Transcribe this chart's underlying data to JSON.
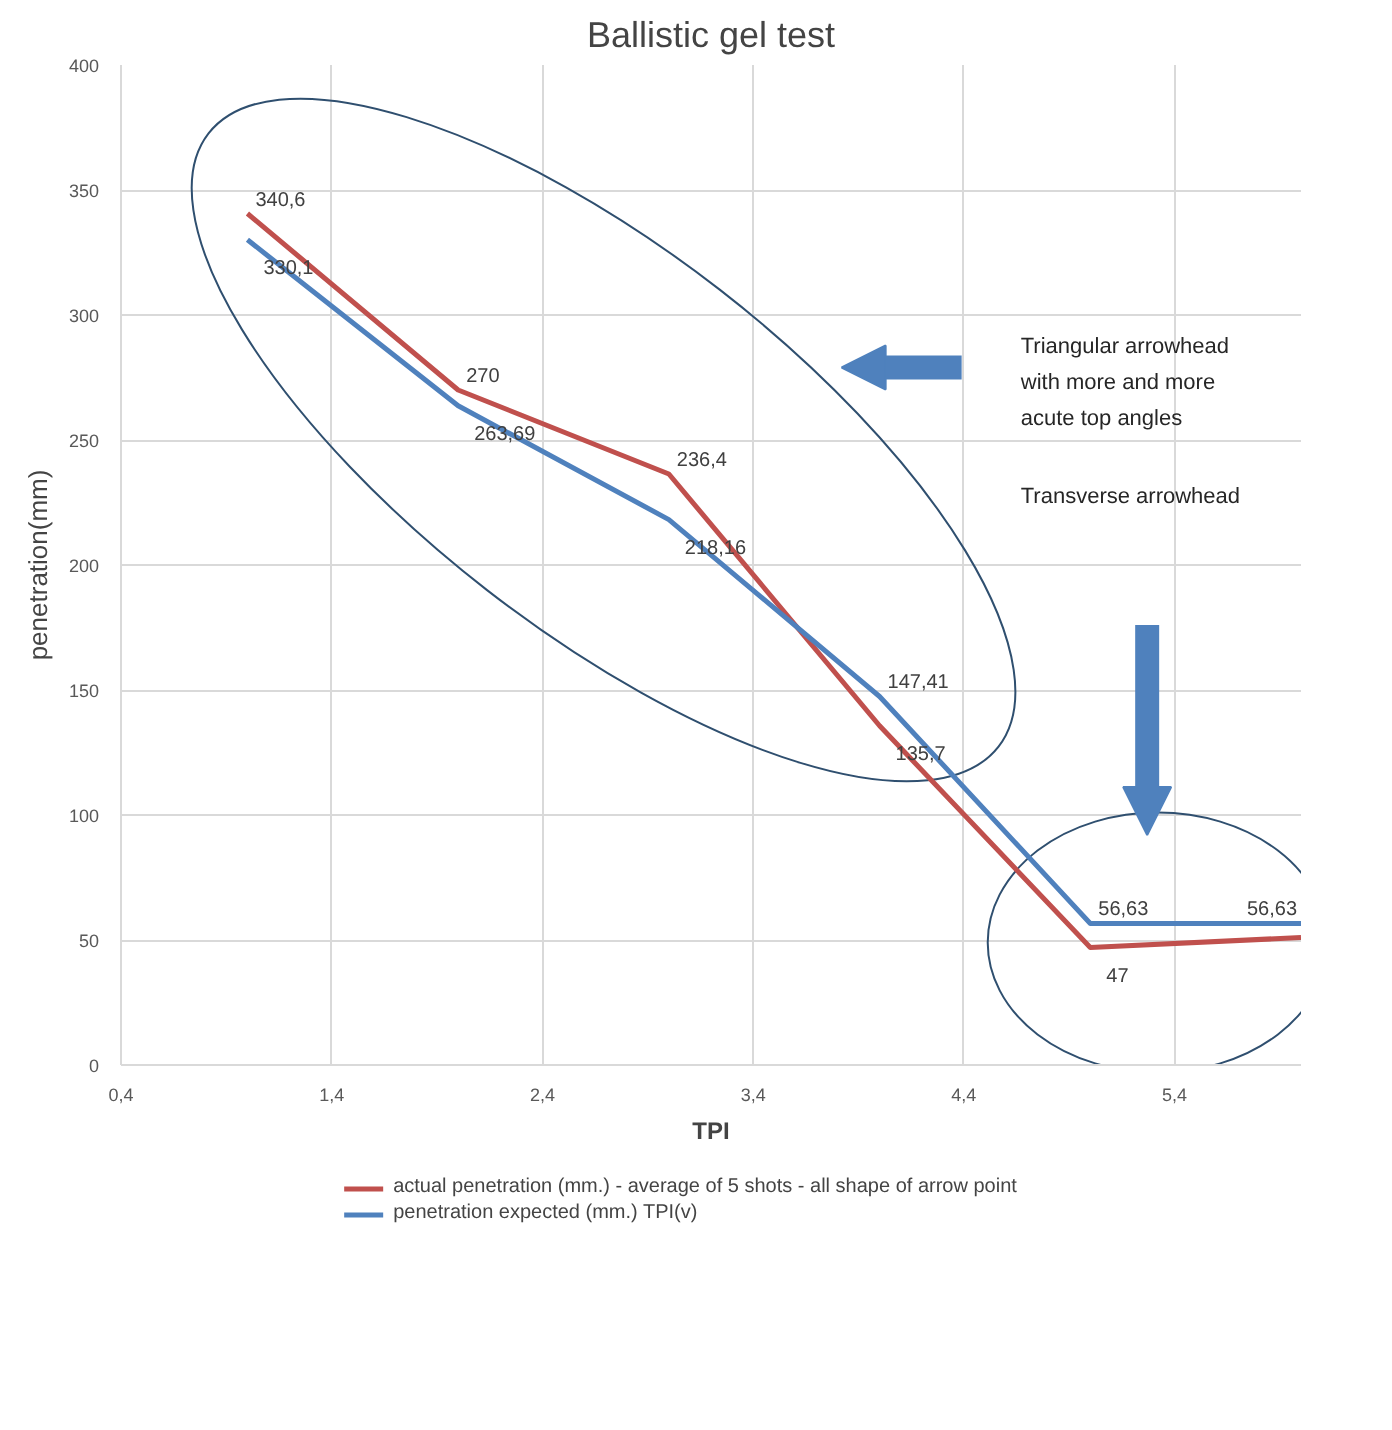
{
  "chart_data": {
    "type": "line",
    "title": "Ballistic gel test",
    "xlabel": "TPI",
    "ylabel": "penetration(mm)",
    "x": [
      1,
      2,
      3,
      4,
      5,
      6
    ],
    "series": [
      {
        "name": "actual penetration (mm.) - average of 5 shots - all shape of arrow point",
        "color": "#c0504d",
        "values": [
          340.6,
          270,
          236.4,
          135.7,
          47,
          51
        ],
        "value_labels": [
          "340,6",
          "270",
          "236,4",
          "135,7",
          "47",
          null
        ]
      },
      {
        "name": "penetration expected (mm.) TPI(v)",
        "color": "#4f81bd",
        "values": [
          330.1,
          263.69,
          218.16,
          147.41,
          56.63,
          56.63
        ],
        "value_labels": [
          "330,1",
          "263,69",
          "218,16",
          "147,41",
          "56,63",
          "56,63"
        ]
      }
    ],
    "xlim": [
      0.4,
      6.0
    ],
    "ylim": [
      0,
      400
    ],
    "xticks": [
      {
        "value": 0.4,
        "label": "0,4"
      },
      {
        "value": 1.4,
        "label": "1,4"
      },
      {
        "value": 2.4,
        "label": "2,4"
      },
      {
        "value": 3.4,
        "label": "3,4"
      },
      {
        "value": 4.4,
        "label": "4,4"
      },
      {
        "value": 5.4,
        "label": "5,4"
      }
    ],
    "yticks": [
      0,
      50,
      100,
      150,
      200,
      250,
      300,
      350,
      400
    ],
    "annotations": [
      "Triangular arrowhead with more and more acute top angles",
      "Transverse arrowhead"
    ],
    "grid": true,
    "legend": "bottom",
    "marker": "none",
    "line_style": "solid"
  }
}
